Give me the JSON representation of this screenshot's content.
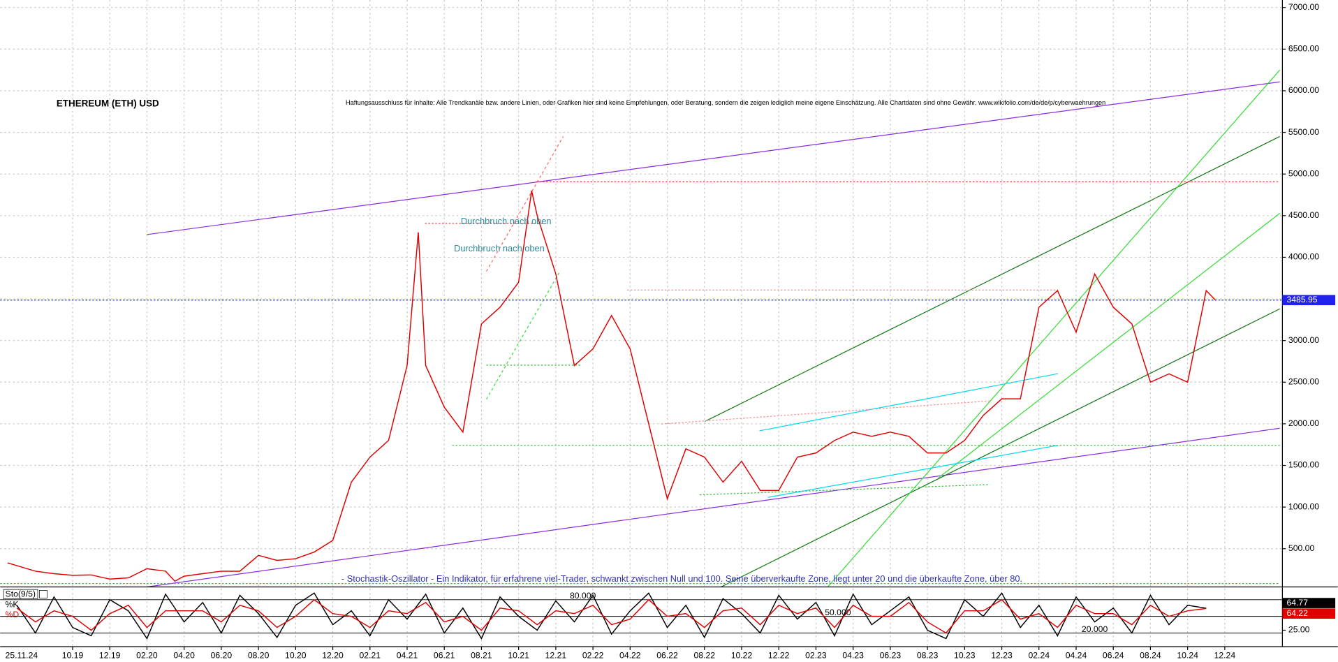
{
  "chart_data": [
    {
      "type": "line",
      "title": "ETHEREUM (ETH) USD",
      "subtitle": "Haftungsausschluss für Inhalte: Alle Trendkanäle bzw. andere Linien, oder Grafiken hier sind keine Empfehlungen, oder Beratung, sondern die zeigen lediglich meine eigene Einschätzung. Alle Chartdaten sind ohne Gewähr.  www.wikifolio.com/de/de/p/cyberwaehrungen",
      "annotations": [
        "Durchbruch nach oben",
        "Durchbruch nach oben",
        "- Stochastik-Oszillator - Ein Indikator, für erfahrene viel-Trader, schwankt zwischen Null und 100. Seine überverkaufte Zone, liegt unter 20 und die überkaufte Zone, über 80."
      ],
      "date_label": "25.11.24",
      "x": [
        -3.5,
        -2,
        -1,
        0,
        1,
        2,
        3,
        4,
        5,
        5.5,
        6,
        7,
        8,
        9,
        10,
        11,
        12,
        13,
        14,
        15,
        16,
        17,
        18,
        18.6,
        19,
        20,
        21,
        22,
        23,
        24,
        24.7,
        25,
        26,
        27,
        28,
        29,
        30,
        31,
        32,
        33,
        34,
        35,
        36,
        37,
        38,
        39,
        40,
        41,
        42,
        43,
        44,
        45,
        46,
        47,
        48,
        49,
        50,
        51,
        52,
        53,
        54,
        55,
        56,
        57,
        58,
        59,
        60,
        61,
        61.5
      ],
      "series": [
        {
          "color": "#e00000",
          "values": [
            330,
            230,
            200,
            180,
            185,
            135,
            150,
            260,
            230,
            110,
            170,
            200,
            230,
            230,
            420,
            360,
            380,
            460,
            600,
            1300,
            1600,
            1800,
            2700,
            4300,
            2700,
            2200,
            1900,
            3200,
            3400,
            3700,
            4800,
            4500,
            3800,
            2700,
            2900,
            3300,
            2900,
            2000,
            1100,
            1700,
            1600,
            1300,
            1550,
            1200,
            1200,
            1600,
            1650,
            1800,
            1900,
            1850,
            1900,
            1850,
            1650,
            1650,
            1800,
            2100,
            2300,
            2300,
            3400,
            3600,
            3100,
            3800,
            3400,
            3200,
            2500,
            2600,
            2500,
            3600,
            3486
          ]
        }
      ],
      "current_price": 3485.95,
      "xlim": [
        -3.67,
        65.1
      ],
      "xticks": [
        {
          "value": 0,
          "label": "10.19"
        },
        {
          "value": 2,
          "label": "12.19"
        },
        {
          "value": 4,
          "label": "02.20"
        },
        {
          "value": 6,
          "label": "04.20"
        },
        {
          "value": 8,
          "label": "06.20"
        },
        {
          "value": 10,
          "label": "08.20"
        },
        {
          "value": 12,
          "label": "10.20"
        },
        {
          "value": 14,
          "label": "12.20"
        },
        {
          "value": 16,
          "label": "02.21"
        },
        {
          "value": 18,
          "label": "04.21"
        },
        {
          "value": 20,
          "label": "06.21"
        },
        {
          "value": 22,
          "label": "08.21"
        },
        {
          "value": 24,
          "label": "10.21"
        },
        {
          "value": 26,
          "label": "12.21"
        },
        {
          "value": 28,
          "label": "02.22"
        },
        {
          "value": 30,
          "label": "04.22"
        },
        {
          "value": 32,
          "label": "06.22"
        },
        {
          "value": 34,
          "label": "08.22"
        },
        {
          "value": 36,
          "label": "10.22"
        },
        {
          "value": 38,
          "label": "12.22"
        },
        {
          "value": 40,
          "label": "02.23"
        },
        {
          "value": 42,
          "label": "04.23"
        },
        {
          "value": 44,
          "label": "06.23"
        },
        {
          "value": 46,
          "label": "08.23"
        },
        {
          "value": 48,
          "label": "10.23"
        },
        {
          "value": 50,
          "label": "12.23"
        },
        {
          "value": 52,
          "label": "02.24"
        },
        {
          "value": 54,
          "label": "04.24"
        },
        {
          "value": 56,
          "label": "06.24"
        },
        {
          "value": 58,
          "label": "08.24"
        },
        {
          "value": 60,
          "label": "10.24"
        },
        {
          "value": 62,
          "label": "12.24"
        }
      ],
      "ylim": [
        41,
        7090
      ],
      "yticks": [
        {
          "value": 500,
          "label": "500.00"
        },
        {
          "value": 1000,
          "label": "1000.00"
        },
        {
          "value": 1500,
          "label": "1500.00"
        },
        {
          "value": 2000,
          "label": "2000.00"
        },
        {
          "value": 2500,
          "label": "2500.00"
        },
        {
          "value": 3000,
          "label": "3000.00"
        },
        {
          "value": 3500,
          "label": "3500.00"
        },
        {
          "value": 4000,
          "label": "4000.00"
        },
        {
          "value": 4500,
          "label": "4500.00"
        },
        {
          "value": 5000,
          "label": "5000.00"
        },
        {
          "value": 5500,
          "label": "5500.00"
        },
        {
          "value": 6000,
          "label": "6000.00"
        },
        {
          "value": 6500,
          "label": "6500.00"
        },
        {
          "value": 7000,
          "label": "7000.00"
        }
      ],
      "grid": true
    },
    {
      "type": "line",
      "title": "Sto(9/5)",
      "x": [
        -3,
        -2,
        -1,
        0,
        1,
        2,
        3,
        4,
        5,
        6,
        7,
        8,
        9,
        10,
        11,
        12,
        13,
        14,
        15,
        16,
        17,
        18,
        19,
        20,
        21,
        22,
        23,
        24,
        25,
        26,
        27,
        28,
        29,
        30,
        31,
        32,
        33,
        34,
        35,
        36,
        37,
        38,
        39,
        40,
        41,
        42,
        43,
        44,
        45,
        46,
        47,
        48,
        49,
        50,
        51,
        52,
        53,
        54,
        55,
        56,
        57,
        58,
        59,
        60,
        61
      ],
      "series": [
        {
          "name": "%K",
          "color": "#000000",
          "values": [
            70,
            20,
            85,
            30,
            15,
            80,
            60,
            10,
            90,
            40,
            75,
            20,
            88,
            55,
            12,
            70,
            92,
            35,
            60,
            15,
            80,
            45,
            90,
            20,
            65,
            10,
            85,
            50,
            25,
            78,
            40,
            88,
            18,
            60,
            92,
            30,
            70,
            12,
            82,
            55,
            20,
            88,
            45,
            75,
            15,
            90,
            35,
            60,
            85,
            25,
            10,
            80,
            50,
            92,
            30,
            70,
            15,
            85,
            40,
            65,
            20,
            88,
            35,
            70,
            64.77
          ]
        },
        {
          "name": "%D",
          "color": "#e00000",
          "values": [
            65,
            40,
            60,
            50,
            25,
            55,
            70,
            30,
            60,
            60,
            60,
            40,
            70,
            60,
            30,
            50,
            80,
            55,
            50,
            30,
            60,
            55,
            75,
            40,
            50,
            25,
            65,
            60,
            35,
            60,
            55,
            70,
            35,
            45,
            80,
            50,
            55,
            30,
            60,
            65,
            35,
            70,
            55,
            65,
            30,
            70,
            50,
            50,
            75,
            40,
            20,
            60,
            60,
            80,
            45,
            55,
            30,
            70,
            55,
            55,
            35,
            70,
            50,
            60,
            64.22
          ]
        }
      ],
      "ylim": [
        0,
        100
      ],
      "yticks": [
        {
          "value": 80,
          "label": "80.000"
        },
        {
          "value": 50,
          "label": "50.000"
        },
        {
          "value": 20,
          "label": "20.000"
        }
      ],
      "yticks_right": [
        {
          "value": 25,
          "label": "25.00"
        }
      ]
    }
  ]
}
